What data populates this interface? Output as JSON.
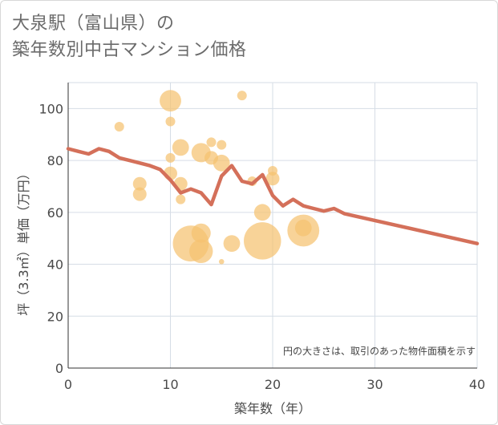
{
  "title": {
    "line1": "大泉駅（富山県）の",
    "line2": "築年数別中古マンション価格"
  },
  "colors": {
    "bubble": "#f5c270",
    "line": "#d4705a",
    "grid": "#d6dde6",
    "plot_bg": "#ffffff"
  },
  "chart_data": {
    "type": "scatter",
    "xlabel": "築年数（年）",
    "ylabel": "坪（3.3㎡）単価（万円）",
    "xlim": [
      0,
      40
    ],
    "ylim": [
      0,
      110
    ],
    "x_ticks": [
      "0",
      "10",
      "20",
      "30",
      "40"
    ],
    "y_ticks": [
      "0",
      "20",
      "40",
      "60",
      "80",
      "100"
    ],
    "grid": true,
    "note": "円の大きさは、取引のあった物件面積を示す",
    "bubbles": [
      {
        "x": 5,
        "y": 93,
        "size": 1
      },
      {
        "x": 7,
        "y": 71,
        "size": 2
      },
      {
        "x": 7,
        "y": 67,
        "size": 2
      },
      {
        "x": 10,
        "y": 103,
        "size": 5
      },
      {
        "x": 10,
        "y": 95,
        "size": 1
      },
      {
        "x": 10,
        "y": 81,
        "size": 1
      },
      {
        "x": 10,
        "y": 75,
        "size": 2
      },
      {
        "x": 11,
        "y": 85,
        "size": 3
      },
      {
        "x": 11,
        "y": 71,
        "size": 2
      },
      {
        "x": 11,
        "y": 65,
        "size": 1
      },
      {
        "x": 12,
        "y": 48,
        "size": 14
      },
      {
        "x": 13,
        "y": 83,
        "size": 4
      },
      {
        "x": 13,
        "y": 52,
        "size": 4
      },
      {
        "x": 13,
        "y": 45,
        "size": 6
      },
      {
        "x": 14,
        "y": 87,
        "size": 1
      },
      {
        "x": 14,
        "y": 81,
        "size": 2
      },
      {
        "x": 15,
        "y": 86,
        "size": 1
      },
      {
        "x": 15,
        "y": 79,
        "size": 3
      },
      {
        "x": 15,
        "y": 41,
        "size": 0.3
      },
      {
        "x": 16,
        "y": 48,
        "size": 3
      },
      {
        "x": 17,
        "y": 105,
        "size": 1
      },
      {
        "x": 18,
        "y": 72,
        "size": 1
      },
      {
        "x": 19,
        "y": 60,
        "size": 3
      },
      {
        "x": 19,
        "y": 49,
        "size": 15
      },
      {
        "x": 20,
        "y": 76,
        "size": 1
      },
      {
        "x": 20,
        "y": 73,
        "size": 2
      },
      {
        "x": 23,
        "y": 53,
        "size": 11
      },
      {
        "x": 23,
        "y": 54,
        "size": 3
      }
    ],
    "series": [
      {
        "points": [
          [
            0,
            84.5
          ],
          [
            1,
            83.5
          ],
          [
            2,
            82.5
          ],
          [
            3,
            84.5
          ],
          [
            4,
            83.5
          ],
          [
            5,
            81
          ],
          [
            6,
            80
          ],
          [
            7,
            79
          ],
          [
            8,
            78
          ],
          [
            9,
            76.5
          ],
          [
            10,
            72.5
          ],
          [
            11,
            67.5
          ],
          [
            12,
            69
          ],
          [
            13,
            67.5
          ],
          [
            14,
            63
          ],
          [
            15,
            74
          ],
          [
            16,
            78
          ],
          [
            17,
            72
          ],
          [
            18,
            71
          ],
          [
            19,
            74.5
          ],
          [
            20,
            66.5
          ],
          [
            21,
            62.5
          ],
          [
            22,
            65
          ],
          [
            23,
            62.5
          ],
          [
            24,
            61.5
          ],
          [
            25,
            60.5
          ],
          [
            26,
            61.5
          ],
          [
            27,
            59.5
          ],
          [
            40,
            48
          ]
        ]
      }
    ]
  }
}
